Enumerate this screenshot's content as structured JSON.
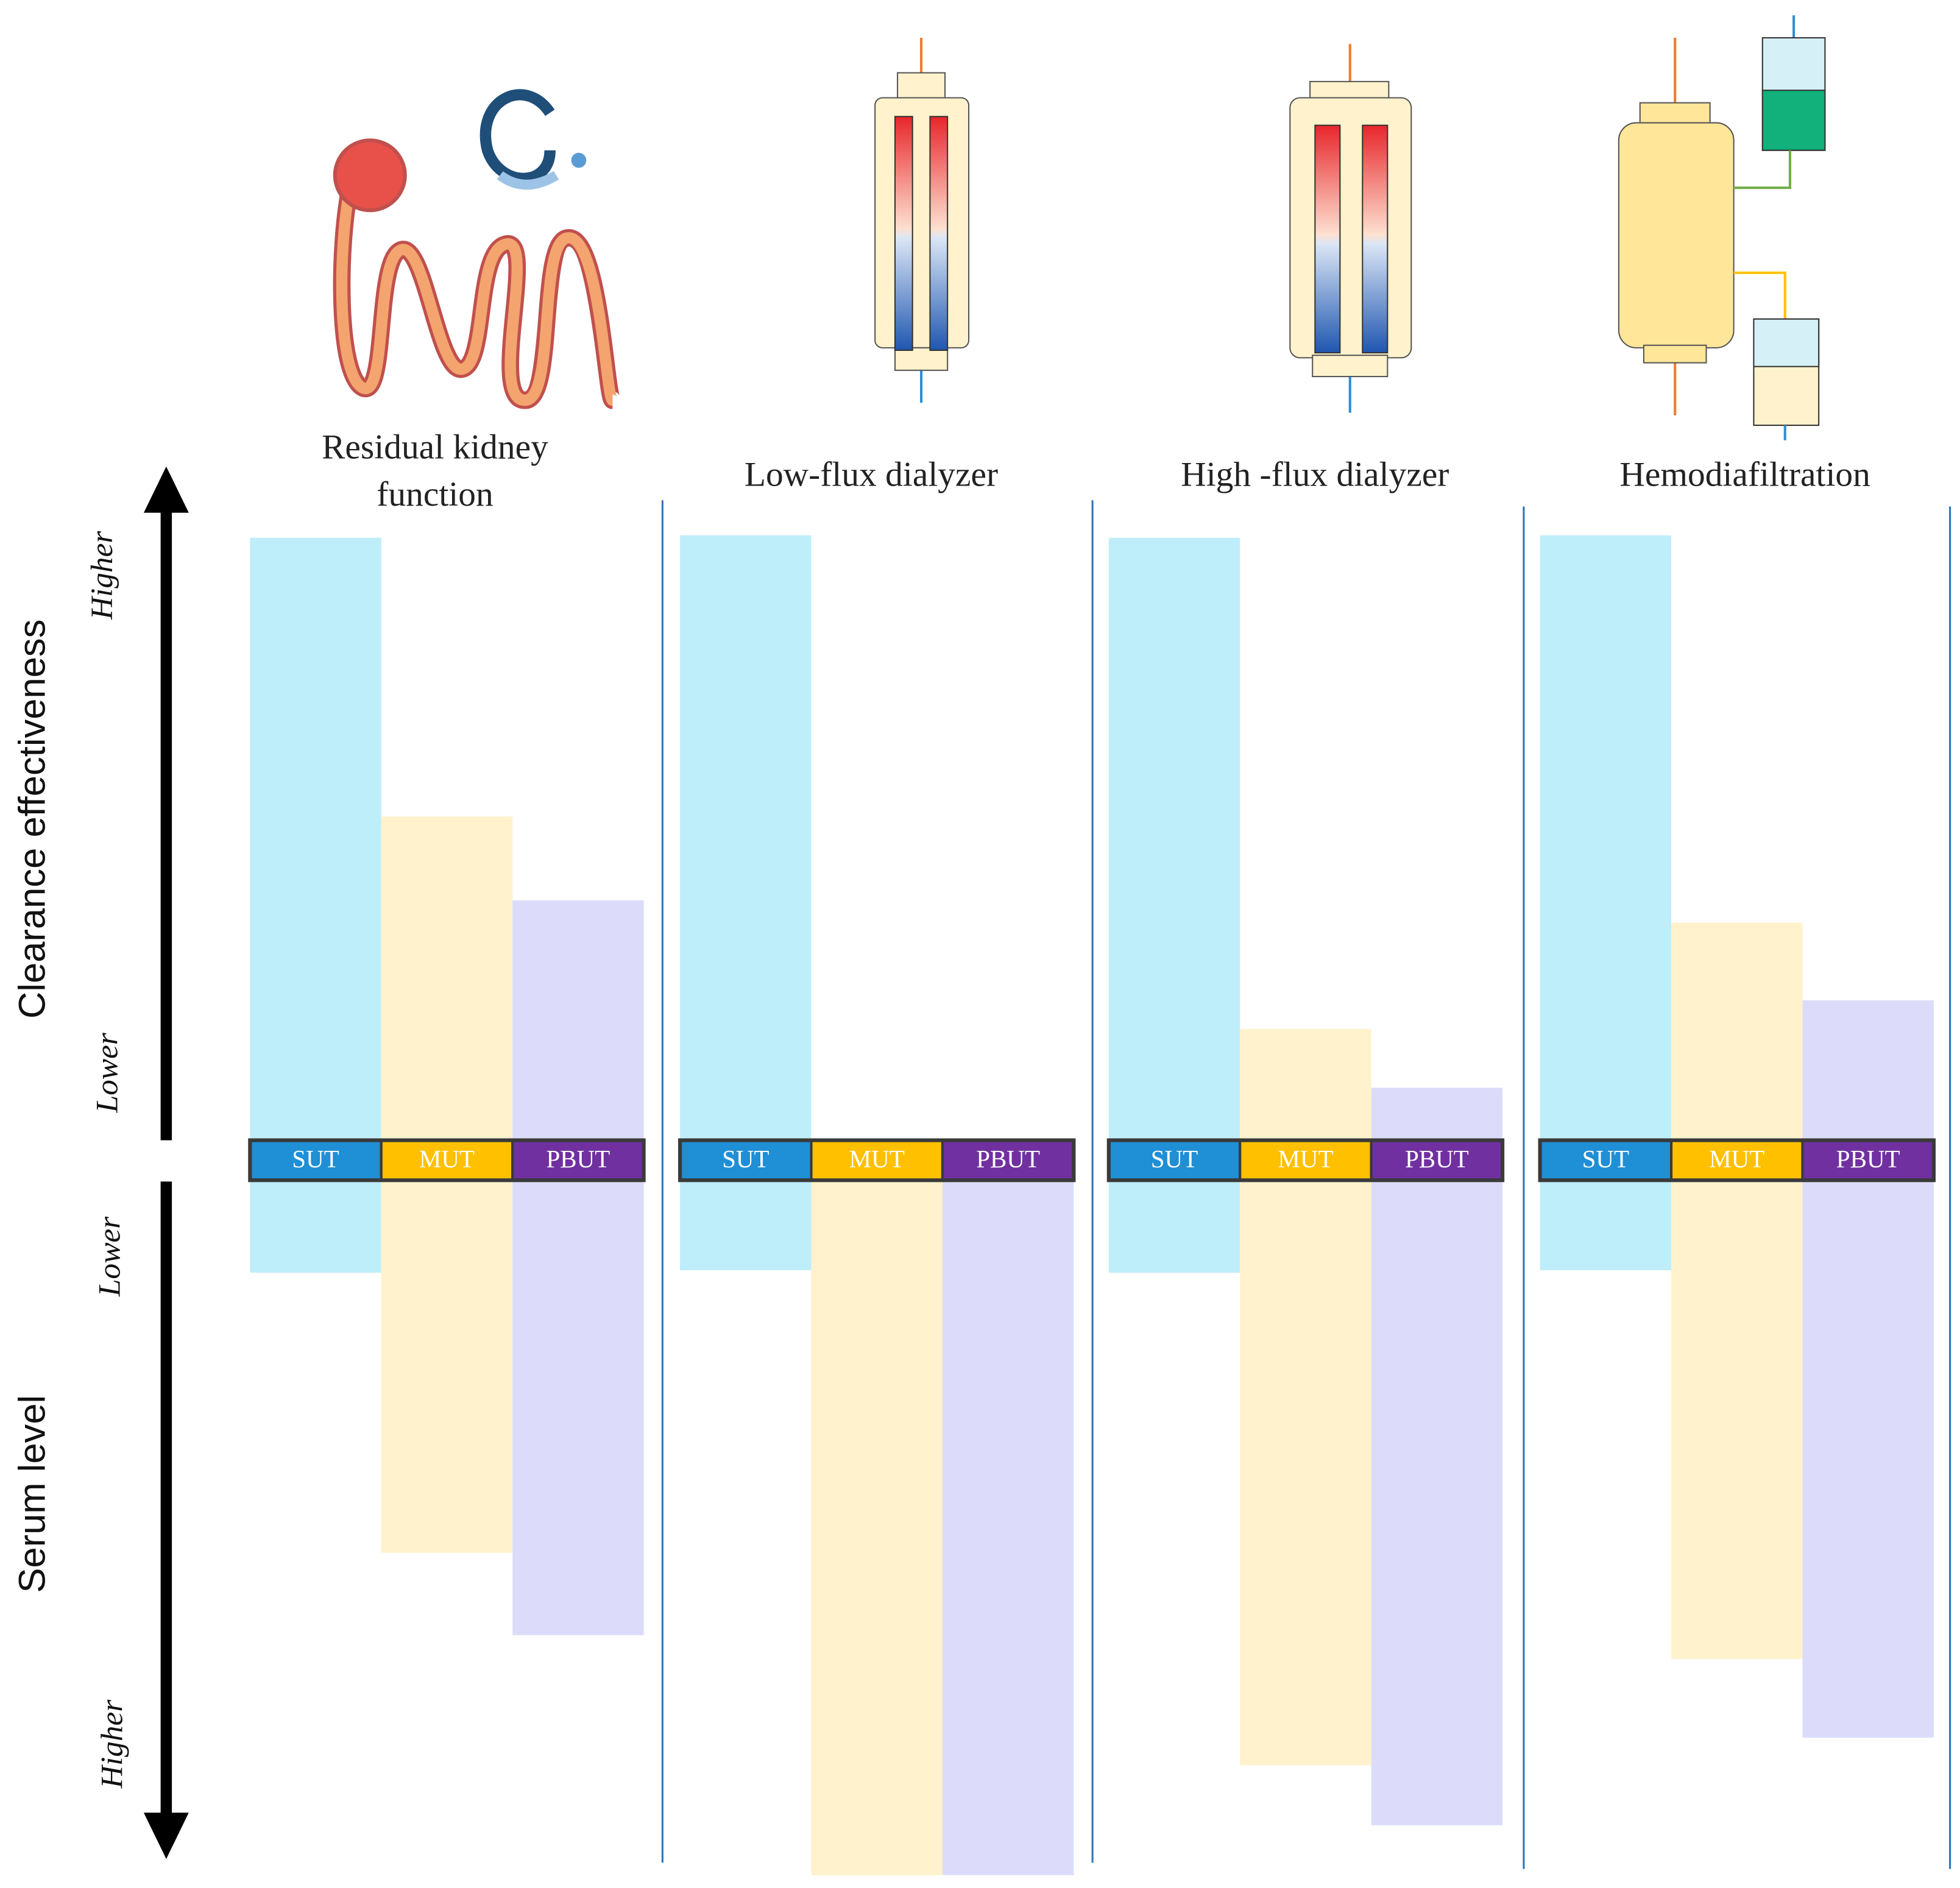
{
  "axes": {
    "top_label": "Clearance effectiveness",
    "bottom_label": "Serum level",
    "top_high": "Higher",
    "top_low": "Lower",
    "bottom_low": "Lower",
    "bottom_high": "Higher"
  },
  "panels": [
    {
      "title": [
        "Residual  kidney",
        "function"
      ],
      "labels": [
        "SUT",
        "MUT",
        "PBUT"
      ]
    },
    {
      "title": [
        "Low-flux dialyzer"
      ],
      "labels": [
        "SUT",
        "MUT",
        "PBUT"
      ]
    },
    {
      "title": [
        "High -flux dialyzer"
      ],
      "labels": [
        "SUT",
        "MUT",
        "PBUT"
      ]
    },
    {
      "title": [
        "Hemodiafiltration"
      ],
      "labels": [
        "SUT",
        "MUT",
        "PBUT"
      ]
    }
  ]
}
